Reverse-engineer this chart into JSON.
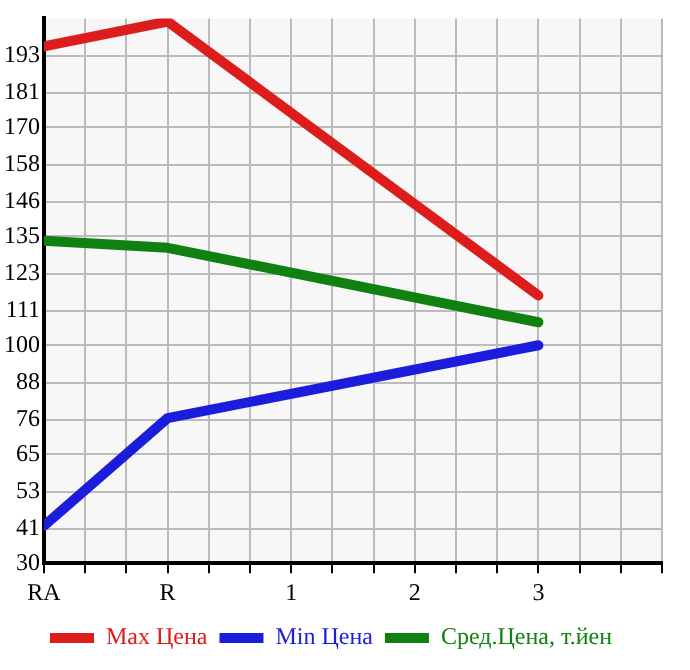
{
  "chart_data": {
    "type": "line",
    "categories": [
      "RA",
      "R",
      "1",
      "2",
      "3"
    ],
    "series": [
      {
        "name": "Max Цена",
        "color": "#dd1c1c",
        "values": [
          196,
          204,
          null,
          null,
          116
        ]
      },
      {
        "name": "Min Цена",
        "color": "#1c1cdd",
        "values": [
          42,
          76.6,
          null,
          null,
          100
        ]
      },
      {
        "name": "Сред.Цена, т.йен",
        "color": "#108010",
        "values": [
          133.6,
          131.3,
          null,
          null,
          107.4
        ]
      }
    ],
    "ylim": [
      30,
      205
    ],
    "yticks": [
      30,
      41,
      53,
      65,
      76,
      88,
      100,
      111,
      123,
      135,
      146,
      158,
      170,
      181,
      193
    ],
    "grid": true,
    "legend": "bottom",
    "marker": "none",
    "line_style": "solid"
  }
}
